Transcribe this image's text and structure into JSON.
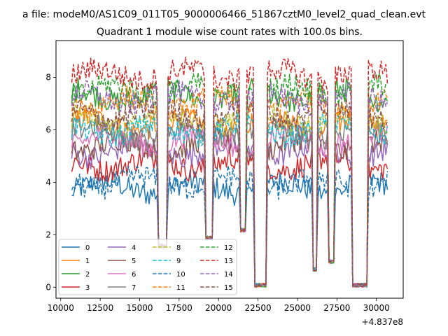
{
  "figure": {
    "suptitle": "a file: modeM0/AS1C09_011T05_9000006466_51867cztM0_level2_quad_clean.evt"
  },
  "chart_data": {
    "type": "line",
    "title": "Quadrant 1 module wise count rates with 100.0s bins.",
    "xlabel": "",
    "ylabel": "",
    "x_offset_label": "+4.837e8",
    "xlim": [
      9700,
      31700
    ],
    "ylim": [
      -0.42,
      9.4
    ],
    "xticks": [
      10000,
      12500,
      15000,
      17500,
      20000,
      22500,
      25000,
      27500,
      30000
    ],
    "xtick_labels": [
      "10000",
      "12500",
      "15000",
      "17500",
      "20000",
      "22500",
      "25000",
      "27500",
      "30000"
    ],
    "yticks": [
      0,
      2,
      4,
      6,
      8
    ],
    "ytick_labels": [
      "0",
      "2",
      "4",
      "6",
      "8"
    ],
    "grid": false,
    "legend_position": "lower-left",
    "legend_columns": 4,
    "x_range": [
      10700,
      30700
    ],
    "bin_seconds": 100,
    "gaps": [
      {
        "x": [
          16200,
          16700
        ],
        "floor": 1.5
      },
      {
        "x": [
          19200,
          19600
        ],
        "floor": 1.8
      },
      {
        "x": [
          21400,
          21700
        ],
        "floor": 2.1
      },
      {
        "x": [
          22300,
          23000
        ],
        "floor": 0.0
      },
      {
        "x": [
          26000,
          26200
        ],
        "floor": 0.6
      },
      {
        "x": [
          27000,
          27300
        ],
        "floor": 0.9
      },
      {
        "x": [
          28500,
          29400
        ],
        "floor": 0.0
      }
    ],
    "series": [
      {
        "name": "0",
        "color": "#1f77b4",
        "style": "solid",
        "level": 3.8
      },
      {
        "name": "1",
        "color": "#ff7f0e",
        "style": "solid",
        "level": 6.2
      },
      {
        "name": "2",
        "color": "#2ca02c",
        "style": "solid",
        "level": 7.3
      },
      {
        "name": "3",
        "color": "#d62728",
        "style": "solid",
        "level": 4.7
      },
      {
        "name": "4",
        "color": "#9467bd",
        "style": "solid",
        "level": 5.2
      },
      {
        "name": "5",
        "color": "#8c564b",
        "style": "solid",
        "level": 5.4
      },
      {
        "name": "6",
        "color": "#e377c2",
        "style": "solid",
        "level": 5.6
      },
      {
        "name": "7",
        "color": "#7f7f7f",
        "style": "solid",
        "level": 5.9
      },
      {
        "name": "8",
        "color": "#bcbd22",
        "style": "dashed",
        "level": 6.4
      },
      {
        "name": "9",
        "color": "#17becf",
        "style": "dashed",
        "level": 6.0
      },
      {
        "name": "10",
        "color": "#1f77b4",
        "style": "dashed",
        "level": 4.0
      },
      {
        "name": "11",
        "color": "#ff7f0e",
        "style": "dashed",
        "level": 7.0
      },
      {
        "name": "12",
        "color": "#2ca02c",
        "style": "dashed",
        "level": 7.5
      },
      {
        "name": "13",
        "color": "#d62728",
        "style": "dashed",
        "level": 8.1
      },
      {
        "name": "14",
        "color": "#9467bd",
        "style": "dashed",
        "level": 7.2
      },
      {
        "name": "15",
        "color": "#8c564b",
        "style": "dashed",
        "level": 6.6
      }
    ]
  }
}
